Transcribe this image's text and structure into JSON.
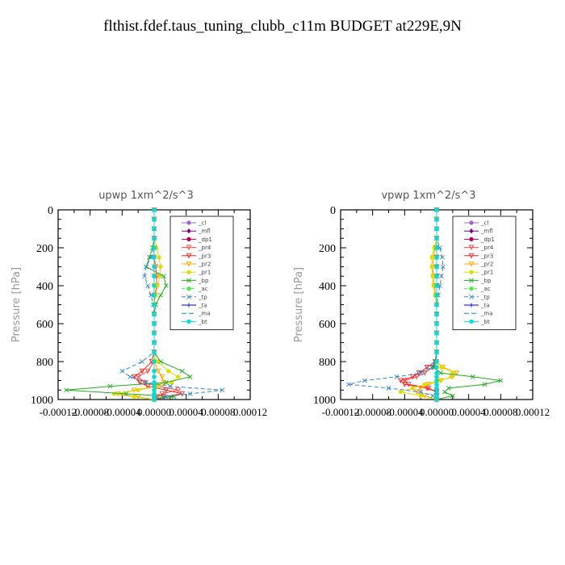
{
  "title": "flthist.fdef.taus_tuning_clubb_c11m  BUDGET at229E,9N",
  "chart_data": [
    {
      "type": "line",
      "title": "upwp   1xm^2/s^3",
      "ylabel": "Pressure [hPa]",
      "yticks": [
        "0",
        "200",
        "400",
        "600",
        "800",
        "1000"
      ],
      "xticks": [
        "-0.00012",
        "-0.00008",
        "-0.00004",
        "0.00000",
        "0.00004",
        "0.00008",
        "0.00012"
      ],
      "xlim": [
        -0.00012,
        0.00012
      ],
      "ylim": [
        0,
        1000
      ],
      "y_reversed": true,
      "legend_position": "top-right",
      "pressure": [
        0,
        50,
        100,
        150,
        200,
        250,
        300,
        350,
        400,
        450,
        500,
        550,
        600,
        650,
        700,
        750,
        800,
        850,
        880,
        910,
        930,
        950,
        970,
        985,
        1000
      ],
      "series": [
        {
          "name": "_cl",
          "color": "#9966cc",
          "marker": "circle",
          "dash": "",
          "values": [
            0,
            0,
            0,
            0,
            0,
            0,
            0,
            0,
            0,
            0,
            0,
            0,
            0,
            0,
            0,
            0,
            0,
            0,
            0,
            0,
            0,
            0,
            0,
            0,
            0
          ]
        },
        {
          "name": "_mfl",
          "color": "#800080",
          "marker": "diamond",
          "dash": "",
          "values": [
            0,
            0,
            0,
            0,
            0,
            0,
            0,
            0,
            0,
            0,
            0,
            0,
            0,
            0,
            0,
            0,
            0,
            0,
            0,
            0,
            0,
            0,
            0,
            0,
            0
          ]
        },
        {
          "name": "_dp1",
          "color": "#b0005a",
          "marker": "circle",
          "dash": "",
          "values": [
            0,
            0,
            0,
            0,
            0,
            0,
            0,
            0,
            0,
            0,
            0,
            0,
            0,
            0,
            0,
            0,
            0,
            0,
            0,
            0,
            0,
            0,
            0,
            0,
            0
          ]
        },
        {
          "name": "_pr4",
          "color": "#ff4444",
          "marker": "triangle",
          "dash": "",
          "values": [
            0,
            0,
            0,
            0,
            0,
            0,
            2e-06,
            3e-06,
            3e-06,
            1e-06,
            0,
            0,
            0,
            0,
            0,
            0,
            0,
            -8e-06,
            -2e-05,
            -1.2e-05,
            5e-06,
            3e-05,
            1e-05,
            4e-06,
            0
          ]
        },
        {
          "name": "_pr3",
          "color": "#ee2222",
          "marker": "triangle",
          "dash": "",
          "values": [
            0,
            0,
            0,
            0,
            0,
            0,
            0,
            0,
            0,
            0,
            0,
            0,
            0,
            0,
            0,
            0,
            -3e-06,
            -1.5e-05,
            -2.5e-05,
            -1.8e-05,
            -8e-06,
            1.5e-05,
            3.5e-05,
            1.2e-05,
            0
          ]
        },
        {
          "name": "_pr2",
          "color": "#ffaa00",
          "marker": "triangle",
          "dash": "",
          "values": [
            0,
            0,
            0,
            0,
            0,
            0,
            0,
            0,
            0,
            0,
            0,
            0,
            0,
            0,
            0,
            0,
            0,
            5e-06,
            1e-05,
            1.2e-05,
            4e-06,
            -2.5e-05,
            -4.5e-05,
            -2e-05,
            0
          ]
        },
        {
          "name": "_pr1",
          "color": "#dddd00",
          "marker": "circle",
          "dash": "",
          "values": [
            0,
            0,
            0,
            0,
            3e-06,
            6e-06,
            8e-06,
            7e-06,
            4e-06,
            2e-06,
            0,
            0,
            0,
            0,
            0,
            0,
            4e-06,
            1.8e-05,
            3e-05,
            2.2e-05,
            5e-06,
            -2e-05,
            -5e-05,
            -2.5e-05,
            0
          ]
        },
        {
          "name": "_bp",
          "color": "#22aa22",
          "marker": "x",
          "dash": "",
          "values": [
            0,
            0,
            0,
            0,
            -2e-06,
            -6e-06,
            -1e-05,
            1.2e-05,
            1.5e-05,
            8e-06,
            2e-06,
            0,
            0,
            0,
            0,
            0,
            8e-06,
            3.5e-05,
            4.5e-05,
            1.5e-05,
            -5.5e-05,
            -0.00011,
            -3.5e-05,
            2.5e-05,
            0
          ]
        },
        {
          "name": "_ac",
          "color": "#44ee44",
          "marker": "circle",
          "dash": "4 2",
          "values": [
            0,
            0,
            0,
            0,
            0,
            0,
            0,
            0,
            0,
            0,
            0,
            0,
            0,
            0,
            0,
            0,
            0,
            0,
            0,
            0,
            0,
            0,
            0,
            0,
            0
          ]
        },
        {
          "name": "_tp",
          "color": "#3388cc",
          "marker": "x",
          "dash": "5 3",
          "values": [
            0,
            0,
            0,
            0,
            0,
            -4e-06,
            -1e-05,
            -1.2e-05,
            -8e-06,
            -4e-06,
            -1e-06,
            0,
            0,
            0,
            0,
            0,
            -1.5e-05,
            -4e-05,
            -3e-05,
            -1e-05,
            2e-05,
            8.5e-05,
            4.5e-05,
            1.5e-05,
            0
          ]
        },
        {
          "name": "_ta",
          "color": "#0000cc",
          "marker": "plus",
          "dash": "",
          "values": [
            0,
            0,
            0,
            0,
            0,
            0,
            0,
            0,
            0,
            0,
            0,
            0,
            0,
            0,
            0,
            0,
            0,
            0,
            0,
            0,
            0,
            0,
            0,
            0,
            0
          ]
        },
        {
          "name": "_ma",
          "color": "#1188aa",
          "marker": "none",
          "dash": "6 3",
          "values": [
            0,
            0,
            0,
            0,
            0,
            0,
            0,
            0,
            0,
            0,
            0,
            0,
            0,
            0,
            0,
            0,
            0,
            0,
            0,
            0,
            0,
            0,
            0,
            0,
            0
          ]
        },
        {
          "name": "_bt",
          "color": "#00dddd",
          "marker": "circle",
          "dash": "",
          "values": [
            0,
            0,
            0,
            0,
            0,
            0,
            0,
            0,
            0,
            0,
            0,
            0,
            0,
            0,
            0,
            0,
            0,
            0,
            0,
            0,
            0,
            0,
            0,
            0,
            0
          ]
        }
      ]
    },
    {
      "type": "line",
      "title": "vpwp   1xm^2/s^3",
      "ylabel": "Pressure [hPa]",
      "yticks": [
        "0",
        "200",
        "400",
        "600",
        "800",
        "1000"
      ],
      "xticks": [
        "-0.00012",
        "-0.00008",
        "-0.00004",
        "0.00000",
        "0.00004",
        "0.00008",
        "0.00012"
      ],
      "xlim": [
        -0.00012,
        0.00012
      ],
      "ylim": [
        0,
        1000
      ],
      "y_reversed": true,
      "legend_position": "top-right",
      "pressure": [
        0,
        50,
        100,
        150,
        200,
        250,
        300,
        350,
        400,
        450,
        500,
        550,
        600,
        650,
        700,
        750,
        800,
        830,
        860,
        880,
        900,
        920,
        940,
        960,
        980,
        1000
      ],
      "series": [
        {
          "name": "_cl",
          "color": "#9966cc",
          "marker": "circle",
          "dash": "",
          "values": [
            0,
            0,
            0,
            0,
            0,
            0,
            0,
            0,
            0,
            0,
            0,
            0,
            0,
            0,
            0,
            0,
            0,
            0,
            0,
            0,
            0,
            0,
            0,
            0,
            0,
            0
          ]
        },
        {
          "name": "_mfl",
          "color": "#800080",
          "marker": "diamond",
          "dash": "",
          "values": [
            0,
            0,
            0,
            0,
            0,
            0,
            0,
            0,
            0,
            0,
            0,
            0,
            0,
            0,
            0,
            0,
            0,
            0,
            0,
            0,
            0,
            0,
            0,
            0,
            0,
            0
          ]
        },
        {
          "name": "_dp1",
          "color": "#b0005a",
          "marker": "circle",
          "dash": "",
          "values": [
            0,
            0,
            0,
            0,
            0,
            0,
            0,
            0,
            0,
            0,
            0,
            0,
            0,
            0,
            0,
            0,
            0,
            0,
            0,
            0,
            0,
            0,
            0,
            0,
            0,
            0
          ]
        },
        {
          "name": "_pr4",
          "color": "#ff4444",
          "marker": "triangle",
          "dash": "",
          "values": [
            0,
            0,
            0,
            0,
            0,
            0,
            0,
            0,
            0,
            0,
            0,
            0,
            0,
            0,
            0,
            0,
            0,
            -5e-06,
            -1.5e-05,
            -2.5e-05,
            -4e-05,
            -3.5e-05,
            -1e-05,
            0,
            0,
            0
          ]
        },
        {
          "name": "_pr3",
          "color": "#ee2222",
          "marker": "triangle",
          "dash": "",
          "values": [
            0,
            0,
            0,
            0,
            0,
            0,
            0,
            0,
            0,
            0,
            0,
            0,
            0,
            0,
            0,
            0,
            -2e-06,
            -1.2e-05,
            -2.2e-05,
            -3e-05,
            -4.5e-05,
            -4e-05,
            -1.2e-05,
            0,
            0,
            0
          ]
        },
        {
          "name": "_pr2",
          "color": "#ffaa00",
          "marker": "triangle",
          "dash": "",
          "values": [
            0,
            0,
            0,
            0,
            -2e-06,
            -4e-06,
            -5e-06,
            -4e-06,
            -3e-06,
            -1e-06,
            0,
            0,
            0,
            0,
            0,
            0,
            0,
            8e-06,
            2.5e-05,
            2e-05,
            5e-06,
            -1e-05,
            -2e-05,
            -2.5e-05,
            -1.5e-05,
            0
          ]
        },
        {
          "name": "_pr1",
          "color": "#dddd00",
          "marker": "circle",
          "dash": "",
          "values": [
            0,
            0,
            0,
            0,
            -3e-06,
            -6e-06,
            -6e-06,
            -5e-06,
            -4e-06,
            -2e-06,
            0,
            0,
            0,
            0,
            0,
            0,
            0,
            6e-06,
            2e-05,
            1.8e-05,
            5e-06,
            -1.5e-05,
            -3e-05,
            -4.5e-05,
            -2e-05,
            0
          ]
        },
        {
          "name": "_bp",
          "color": "#22aa22",
          "marker": "x",
          "dash": "",
          "values": [
            0,
            0,
            0,
            0,
            0,
            0,
            0,
            0,
            0,
            0,
            0,
            0,
            0,
            0,
            0,
            0,
            -2e-06,
            -4e-06,
            5e-06,
            4.5e-05,
            8e-05,
            6e-05,
            1.5e-05,
            1e-05,
            2e-05,
            0
          ]
        },
        {
          "name": "_ac",
          "color": "#44ee44",
          "marker": "circle",
          "dash": "4 2",
          "values": [
            0,
            0,
            0,
            0,
            0,
            0,
            0,
            0,
            0,
            0,
            0,
            0,
            0,
            0,
            0,
            0,
            0,
            0,
            0,
            0,
            0,
            0,
            0,
            0,
            0,
            0
          ]
        },
        {
          "name": "_tp",
          "color": "#3388cc",
          "marker": "x",
          "dash": "5 3",
          "values": [
            0,
            0,
            0,
            0,
            4e-06,
            7e-06,
            8e-06,
            6e-06,
            4e-06,
            2e-06,
            0,
            0,
            0,
            0,
            0,
            0,
            -2e-06,
            -6e-06,
            -2e-05,
            -5e-05,
            -9e-05,
            -0.00011,
            -6e-05,
            -2e-05,
            -5e-06,
            0
          ]
        },
        {
          "name": "_ta",
          "color": "#0000cc",
          "marker": "plus",
          "dash": "",
          "values": [
            0,
            0,
            0,
            0,
            0,
            0,
            0,
            0,
            0,
            0,
            0,
            0,
            0,
            0,
            0,
            0,
            0,
            0,
            0,
            0,
            0,
            0,
            0,
            0,
            0,
            0
          ]
        },
        {
          "name": "_ma",
          "color": "#1188aa",
          "marker": "none",
          "dash": "6 3",
          "values": [
            0,
            0,
            0,
            0,
            0,
            0,
            0,
            0,
            0,
            0,
            0,
            0,
            0,
            0,
            0,
            0,
            0,
            0,
            0,
            0,
            0,
            0,
            0,
            0,
            0,
            0
          ]
        },
        {
          "name": "_bt",
          "color": "#00dddd",
          "marker": "circle",
          "dash": "",
          "values": [
            0,
            0,
            0,
            0,
            0,
            0,
            0,
            0,
            0,
            0,
            0,
            0,
            0,
            0,
            0,
            0,
            0,
            0,
            0,
            0,
            0,
            0,
            0,
            0,
            0,
            0
          ]
        }
      ]
    }
  ]
}
